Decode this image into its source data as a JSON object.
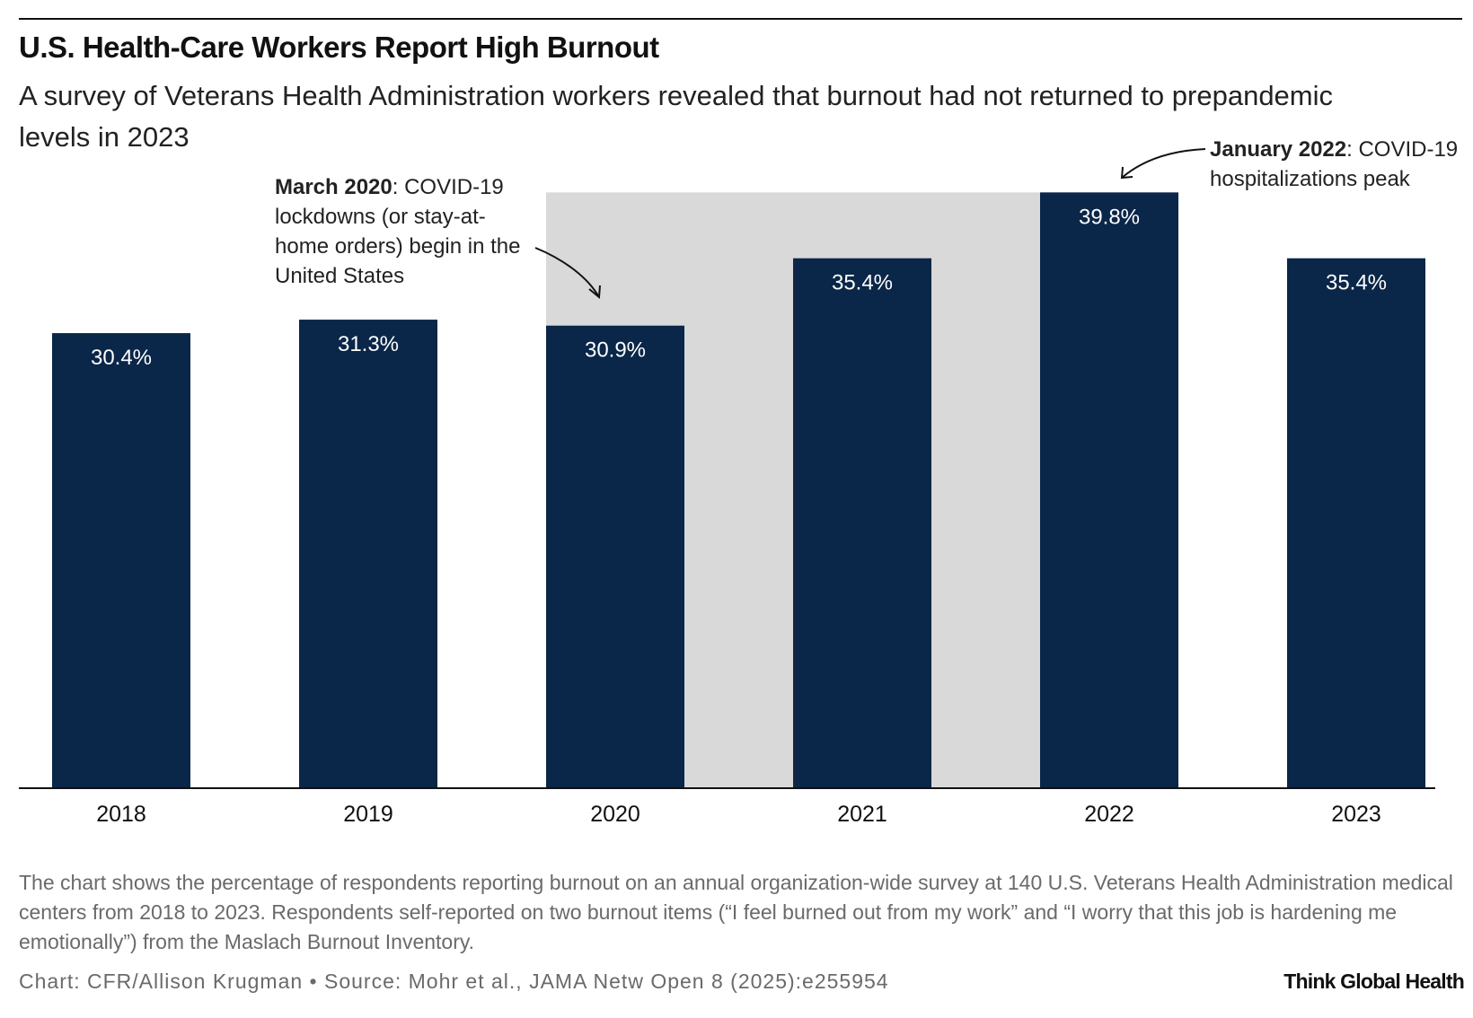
{
  "chart_data": {
    "type": "bar",
    "title": "U.S. Health-Care Workers Report High Burnout",
    "subtitle": "A survey of Veterans Health Administration workers revealed that burnout had not returned to prepandemic levels in 2023",
    "categories": [
      "2018",
      "2019",
      "2020",
      "2021",
      "2022",
      "2023"
    ],
    "values": [
      30.4,
      31.3,
      30.9,
      35.4,
      39.8,
      35.4
    ],
    "value_labels": [
      "30.4%",
      "31.3%",
      "30.9%",
      "35.4%",
      "39.8%",
      "35.4%"
    ],
    "color": "#0a2648",
    "ylim": [
      0,
      40
    ],
    "annotations": [
      {
        "bold": "March 2020",
        "text": ": COVID-19 lockdowns (or stay-at-home orders) begin in the United States"
      },
      {
        "bold": "January 2022",
        "text": ": COVID-19 hospitalizations peak"
      }
    ],
    "note": "The chart shows the percentage of respondents reporting burnout on an annual organization-wide survey at 140 U.S. Veterans Health Administration medical centers from 2018 to 2023. Respondents self-reported on two burnout items (“I feel burned out from my work” and “I worry that this job is hardening me emotionally”) from the Maslach Burnout Inventory.",
    "credit": "Chart: CFR/Allison Krugman • Source: Mohr et al., JAMA Netw Open 8 (2025):e255954",
    "brand": "Think Global Health"
  }
}
